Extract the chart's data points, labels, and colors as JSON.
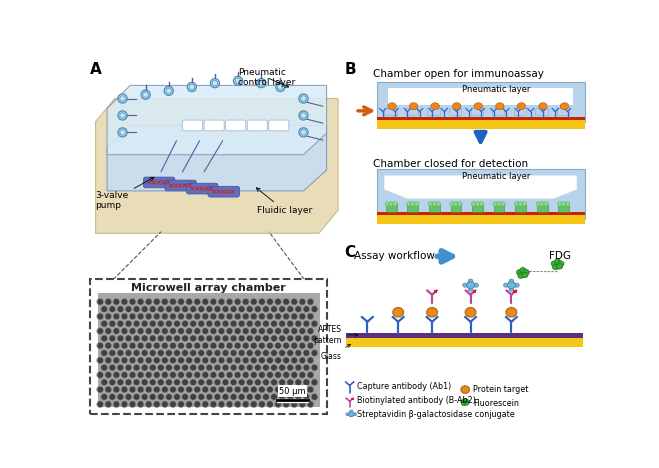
{
  "bg_color": "#ffffff",
  "panel_A_label": "A",
  "panel_B_label": "B",
  "panel_C_label": "C",
  "pneumatic_control_layer": "Pneumatic\ncontrol layer",
  "fluidic_layer": "Fluidic layer",
  "three_valve_pump": "3-valve\npump",
  "microwell_label": "Microwell array chamber",
  "scale_bar_label": "50 μm",
  "chamber_open_title": "Chamber open for immunoassay",
  "chamber_closed_title": "Chamber closed for detection",
  "pneumatic_layer_label": "Pneumatic layer",
  "assay_workflow_label": "Assay workflow",
  "fdg_label": "FDG",
  "aptes_label": "APTES\npattern",
  "glass_label": "Glass",
  "legend_items": [
    "Capture antibody (Ab1)",
    "Biotinylated antibody (B-Ab2)",
    "Streptavidin β-galactosidase conjugate",
    "Protein target",
    "Fluorescein"
  ],
  "pneumatic_color": "#b8d4ec",
  "pneumatic_edge": "#8aabbf",
  "base_color": "#e8ddb8",
  "base_edge": "#c8bb8a",
  "yellow_layer": "#f5c518",
  "red_layer": "#cc2200",
  "purple_layer": "#5a3080",
  "green_color": "#6abf6a",
  "orange_color": "#e88820",
  "blue_ab_color": "#3060c0",
  "magenta_ab_color": "#c040a0",
  "strep_color": "#70b8d8",
  "fluor_color": "#3aaa3a",
  "blue_arrow_color": "#2060c0",
  "orange_arrow_color": "#d06010"
}
